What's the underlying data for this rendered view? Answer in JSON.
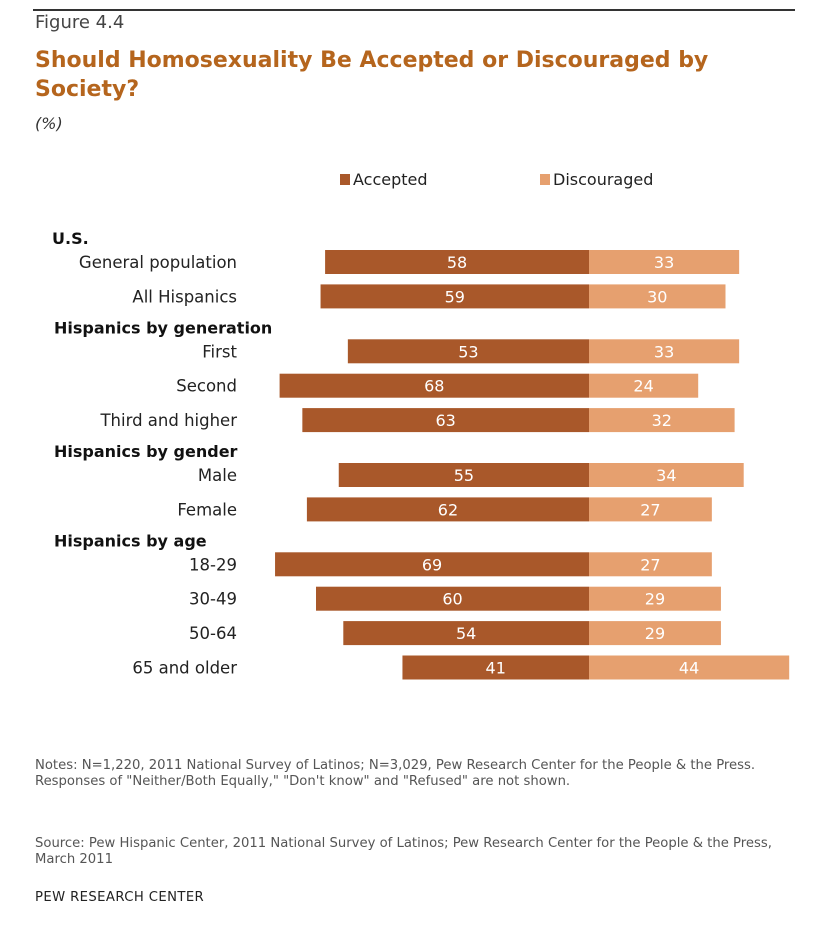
{
  "figure_label": "Figure 4.4",
  "title": "Should Homosexuality Be Accepted or Discouraged by Society?",
  "unit": "(%)",
  "notes": "Notes: N=1,220, 2011 National Survey of Latinos; N=3,029, Pew Research Center for the People & the Press. Responses of \"Neither/Both Equally,\" \"Don't know\" and \"Refused\" are not shown.",
  "source": "Source: Pew Hispanic Center, 2011 National Survey of Latinos; Pew Research Center for the People & the Press, March 2011",
  "org": "PEW RESEARCH CENTER",
  "chart_data": {
    "type": "bar",
    "orientation": "horizontal-diverging",
    "legend": [
      {
        "name": "Accepted",
        "color": "#a9582a"
      },
      {
        "name": "Discouraged",
        "color": "#e6a06f"
      }
    ],
    "groups": [
      {
        "name": "U.S.",
        "rows": [
          {
            "label": "General population",
            "accepted": 58,
            "discouraged": 33
          },
          {
            "label": "All Hispanics",
            "accepted": 59,
            "discouraged": 30
          }
        ]
      },
      {
        "name": "Hispanics by generation",
        "rows": [
          {
            "label": "First",
            "accepted": 53,
            "discouraged": 33
          },
          {
            "label": "Second",
            "accepted": 68,
            "discouraged": 24
          },
          {
            "label": "Third and higher",
            "accepted": 63,
            "discouraged": 32
          }
        ]
      },
      {
        "name": "Hispanics by gender",
        "rows": [
          {
            "label": "Male",
            "accepted": 55,
            "discouraged": 34
          },
          {
            "label": "Female",
            "accepted": 62,
            "discouraged": 27
          }
        ]
      },
      {
        "name": "Hispanics by age",
        "rows": [
          {
            "label": "18-29",
            "accepted": 69,
            "discouraged": 27
          },
          {
            "label": "30-49",
            "accepted": 60,
            "discouraged": 29
          },
          {
            "label": "50-64",
            "accepted": 54,
            "discouraged": 29
          },
          {
            "label": "65 and older",
            "accepted": 41,
            "discouraged": 44
          }
        ]
      }
    ]
  }
}
